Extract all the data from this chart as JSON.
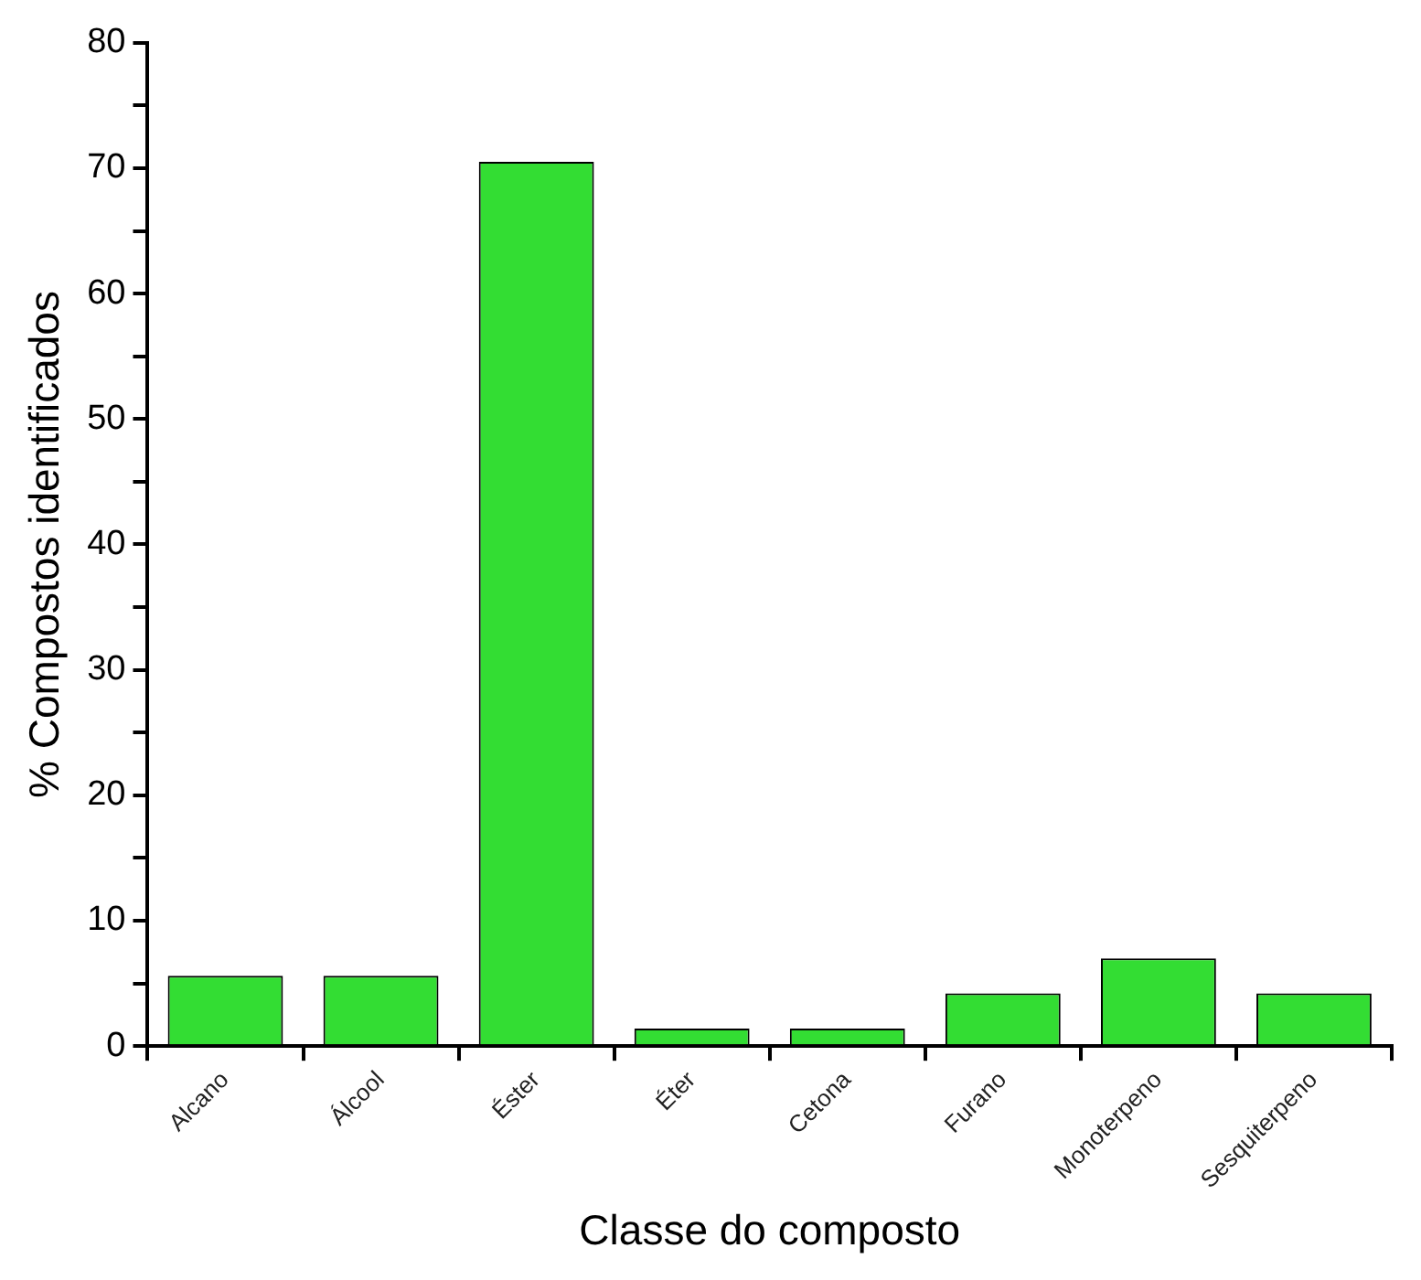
{
  "chart_data": {
    "type": "bar",
    "xlabel": "Classe do composto",
    "ylabel": "% Compostos identificados",
    "categories": [
      "Alcano",
      "Álcool",
      "Éster",
      "Éter",
      "Cetona",
      "Furano",
      "Monoterpeno",
      "Sesquiterpeno"
    ],
    "values": [
      5.6,
      5.6,
      70.5,
      1.4,
      1.4,
      4.2,
      7.0,
      4.2
    ],
    "color": "#33dd33",
    "ylim": [
      0,
      80
    ],
    "yticks": [
      0,
      {
        "value": 5,
        "label": null
      },
      10,
      {
        "value": 15,
        "label": null
      },
      20,
      {
        "value": 25,
        "label": null
      },
      30,
      {
        "value": 35,
        "label": null
      },
      40,
      {
        "value": 45,
        "label": null
      },
      50,
      {
        "value": 55,
        "label": null
      },
      60,
      {
        "value": 65,
        "label": null
      },
      70,
      {
        "value": 75,
        "label": null
      },
      80
    ],
    "grid": false,
    "legend": false
  }
}
